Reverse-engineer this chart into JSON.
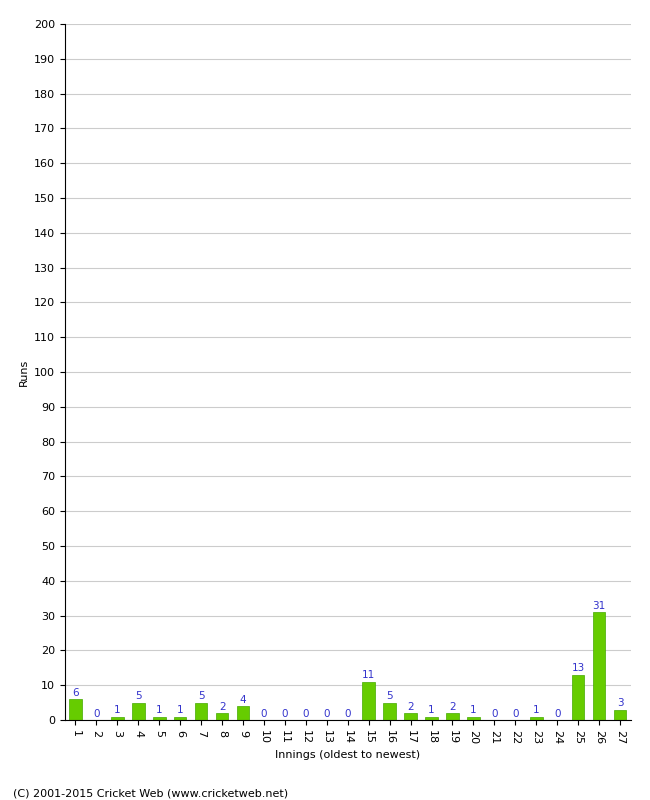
{
  "innings": [
    1,
    2,
    3,
    4,
    5,
    6,
    7,
    8,
    9,
    10,
    11,
    12,
    13,
    14,
    15,
    16,
    17,
    18,
    19,
    20,
    21,
    22,
    23,
    24,
    25,
    26,
    27
  ],
  "runs": [
    6,
    0,
    1,
    5,
    1,
    1,
    5,
    2,
    4,
    0,
    0,
    0,
    0,
    0,
    11,
    5,
    2,
    1,
    2,
    1,
    0,
    0,
    1,
    0,
    13,
    31,
    3
  ],
  "bar_color": "#66cc00",
  "bar_edge_color": "#44aa00",
  "label_color": "#3333cc",
  "ylabel": "Runs",
  "xlabel": "Innings (oldest to newest)",
  "ylim": [
    0,
    200
  ],
  "yticks": [
    0,
    10,
    20,
    30,
    40,
    50,
    60,
    70,
    80,
    90,
    100,
    110,
    120,
    130,
    140,
    150,
    160,
    170,
    180,
    190,
    200
  ],
  "background_color": "#ffffff",
  "grid_color": "#cccccc",
  "footer": "(C) 2001-2015 Cricket Web (www.cricketweb.net)",
  "label_fontsize": 7.5,
  "axis_fontsize": 8,
  "ylabel_fontsize": 8,
  "xlabel_fontsize": 8,
  "footer_fontsize": 8
}
